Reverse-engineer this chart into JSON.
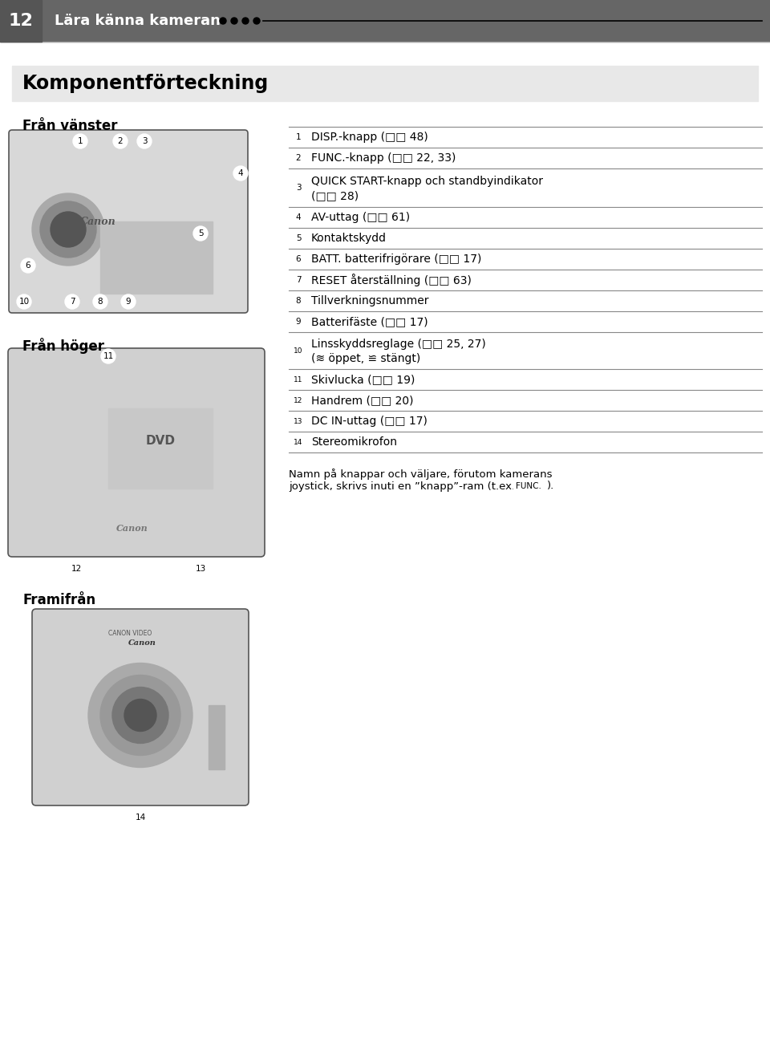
{
  "page_number": "12",
  "header_text": "Lära känna kameran ●●●●",
  "section_title": "Komponentförteckning",
  "left_section_title": "Från vänster",
  "right_section_title": "Från höger",
  "front_section_title": "Framifrån",
  "list_items": [
    {
      "num": 1,
      "text": "DISP.-knapp (□□ 48)"
    },
    {
      "num": 2,
      "text": "FUNC.-knapp (□□ 22, 33)"
    },
    {
      "num": 3,
      "text": "QUICK START-knapp och standbyindikator\n    (□□ 28)"
    },
    {
      "num": 4,
      "text": "AV-uttag (□□ 61)"
    },
    {
      "num": 5,
      "text": "Kontaktskydd"
    },
    {
      "num": 6,
      "text": "BATT. batterifrigörare (□□ 17)"
    },
    {
      "num": 7,
      "text": "RESET återställning (□□ 63)"
    },
    {
      "num": 8,
      "text": "Tillverkningsnummer"
    },
    {
      "num": 9,
      "text": "Batterifäste (□□ 17)"
    },
    {
      "num": 10,
      "text": "Linsskyddsreglage (□□ 25, 27)\n    (≋ öppet, ≌ stängt)"
    },
    {
      "num": 11,
      "text": "Skivlucka (□□ 19)"
    },
    {
      "num": 12,
      "text": "Handrem (□□ 20)"
    },
    {
      "num": 13,
      "text": "DC IN-uttag (□□ 17)"
    },
    {
      "num": 14,
      "text": "Stereomikrofon"
    }
  ],
  "footer_text": "Namn på knappar och väljare, förutom kamerans\njoystick, skrivs inuti en ”knapp”-ram (t.ex. FUNC. ).",
  "bg_color": "#ffffff",
  "header_bg": "#666666",
  "section_title_bg": "#e8e8e8",
  "text_color": "#000000",
  "line_color": "#999999"
}
